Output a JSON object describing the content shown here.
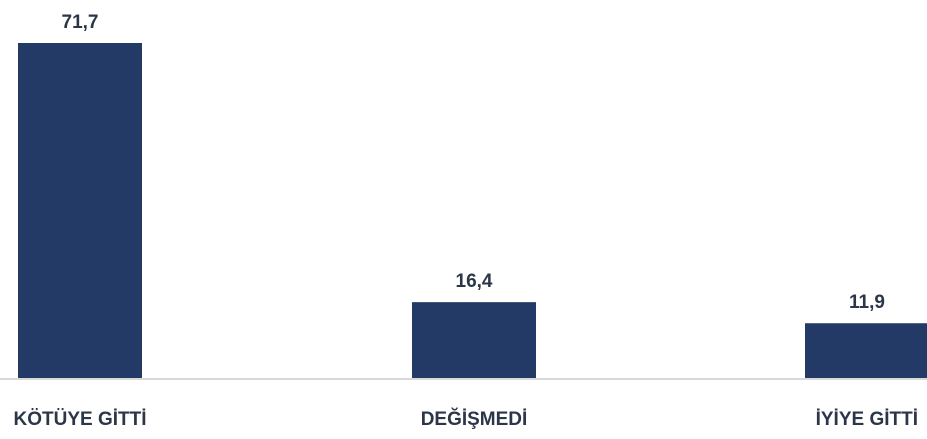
{
  "chart_data": {
    "type": "bar",
    "categories": [
      "KÖTÜYE GİTTİ",
      "DEĞİŞMEDİ",
      "İYİYE GİTTİ"
    ],
    "values": [
      71.7,
      16.4,
      11.9
    ],
    "value_labels": [
      "71,7",
      "16,4",
      "11,9"
    ],
    "title": "",
    "xlabel": "",
    "ylabel": "",
    "ylim": [
      0,
      80
    ],
    "grid": false,
    "legend": "none",
    "bar_color": "#233a66",
    "axis_color": "#d9d9d9",
    "text_color": "#2b3648"
  }
}
